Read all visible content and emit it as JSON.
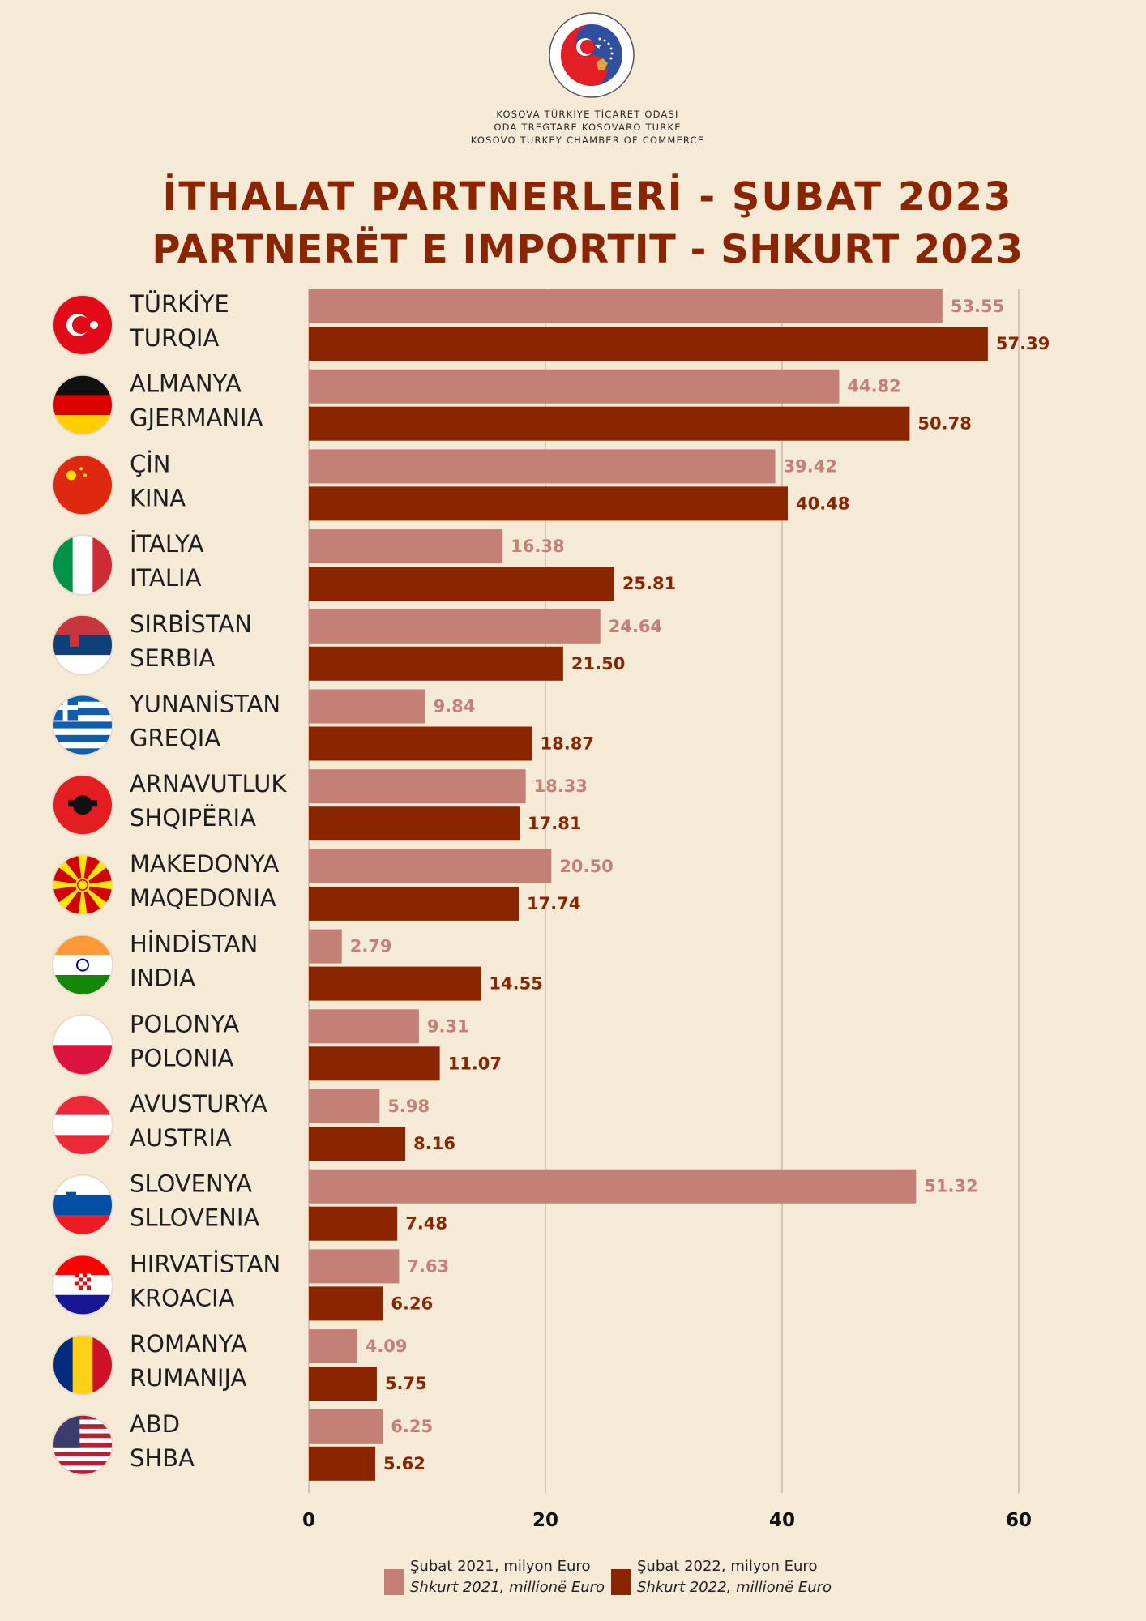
{
  "header": {
    "org_lines": [
      "KOSOVA TÜRKİYE TİCARET ODASI",
      "ODA TREGTARE KOSOVARO TURKE",
      "KOSOVO TURKEY CHAMBER OF COMMERCE"
    ],
    "logo_text": "ODA TREGTARE KOSOVARO TURKE • KOSOVA TÜRKİYE TİCARET ODASI",
    "title_line1": "İTHALAT PARTNERLERİ - ŞUBAT 2023",
    "title_line2": "PARTNERËT E IMPORTIT - SHKURT 2023"
  },
  "colors": {
    "background": "#f5ead6",
    "series_2021": "#c47f76",
    "series_2022": "#8b2500",
    "title": "#8b2500"
  },
  "legend": {
    "series_2021_line1": "Şubat 2021, milyon Euro",
    "series_2021_line2": "Shkurt 2021, millionë Euro",
    "series_2022_line1": "Şubat 2022, milyon Euro",
    "series_2022_line2": "Shkurt 2022, millionë Euro"
  },
  "chart_data": {
    "type": "bar",
    "orientation": "horizontal",
    "categories": [
      {
        "tr": "TÜRKİYE",
        "sq": "TURQIA",
        "flag": "turkey-flag-icon"
      },
      {
        "tr": "ALMANYA",
        "sq": "GJERMANIA",
        "flag": "germany-flag-icon"
      },
      {
        "tr": "ÇİN",
        "sq": "KINA",
        "flag": "china-flag-icon"
      },
      {
        "tr": "İTALYA",
        "sq": "ITALIA",
        "flag": "italy-flag-icon"
      },
      {
        "tr": "SIRBİSTAN",
        "sq": "SERBIA",
        "flag": "serbia-flag-icon"
      },
      {
        "tr": "YUNANİSTAN",
        "sq": "GREQIA",
        "flag": "greece-flag-icon"
      },
      {
        "tr": "ARNAVUTLUK",
        "sq": "SHQIPËRIA",
        "flag": "albania-flag-icon"
      },
      {
        "tr": "MAKEDONYA",
        "sq": "MAQEDONIA",
        "flag": "macedonia-flag-icon"
      },
      {
        "tr": "HİNDİSTAN",
        "sq": "INDIA",
        "flag": "india-flag-icon"
      },
      {
        "tr": "POLONYA",
        "sq": "POLONIA",
        "flag": "poland-flag-icon"
      },
      {
        "tr": "AVUSTURYA",
        "sq": "AUSTRIA",
        "flag": "austria-flag-icon"
      },
      {
        "tr": "SLOVENYA",
        "sq": "SLLOVENIA",
        "flag": "slovenia-flag-icon"
      },
      {
        "tr": "HIRVATİSTAN",
        "sq": "KROACIA",
        "flag": "croatia-flag-icon"
      },
      {
        "tr": "ROMANYA",
        "sq": "RUMANIJA",
        "flag": "romania-flag-icon"
      },
      {
        "tr": "ABD",
        "sq": "SHBA",
        "flag": "usa-flag-icon"
      }
    ],
    "series": [
      {
        "values": [
          53.55,
          44.82,
          39.42,
          16.38,
          24.64,
          9.84,
          18.33,
          20.5,
          2.79,
          9.31,
          5.98,
          51.32,
          7.63,
          4.09,
          6.25
        ],
        "labels": [
          "53.55",
          "44.82",
          "39.42",
          "16.38",
          "24.64",
          "9.84",
          "18.33",
          "20.50",
          "2.79",
          "9.31",
          "5.98",
          "51.32",
          "7.63",
          "4.09",
          "6.25"
        ]
      },
      {
        "values": [
          57.39,
          50.78,
          40.48,
          25.81,
          21.5,
          18.87,
          17.81,
          17.74,
          14.55,
          11.07,
          8.16,
          7.48,
          6.26,
          5.75,
          5.62
        ],
        "labels": [
          "57.39",
          "50.78",
          "40.48",
          "25.81",
          "21.50",
          "18.87",
          "17.81",
          "17.74",
          "14.55",
          "11.07",
          "8.16",
          "7.48",
          "6.26",
          "5.75",
          "5.62"
        ]
      }
    ],
    "xlim": [
      0,
      60
    ],
    "xticks": [
      "0",
      "20",
      "40",
      "60"
    ],
    "grid": true,
    "legend_position": "bottom"
  }
}
